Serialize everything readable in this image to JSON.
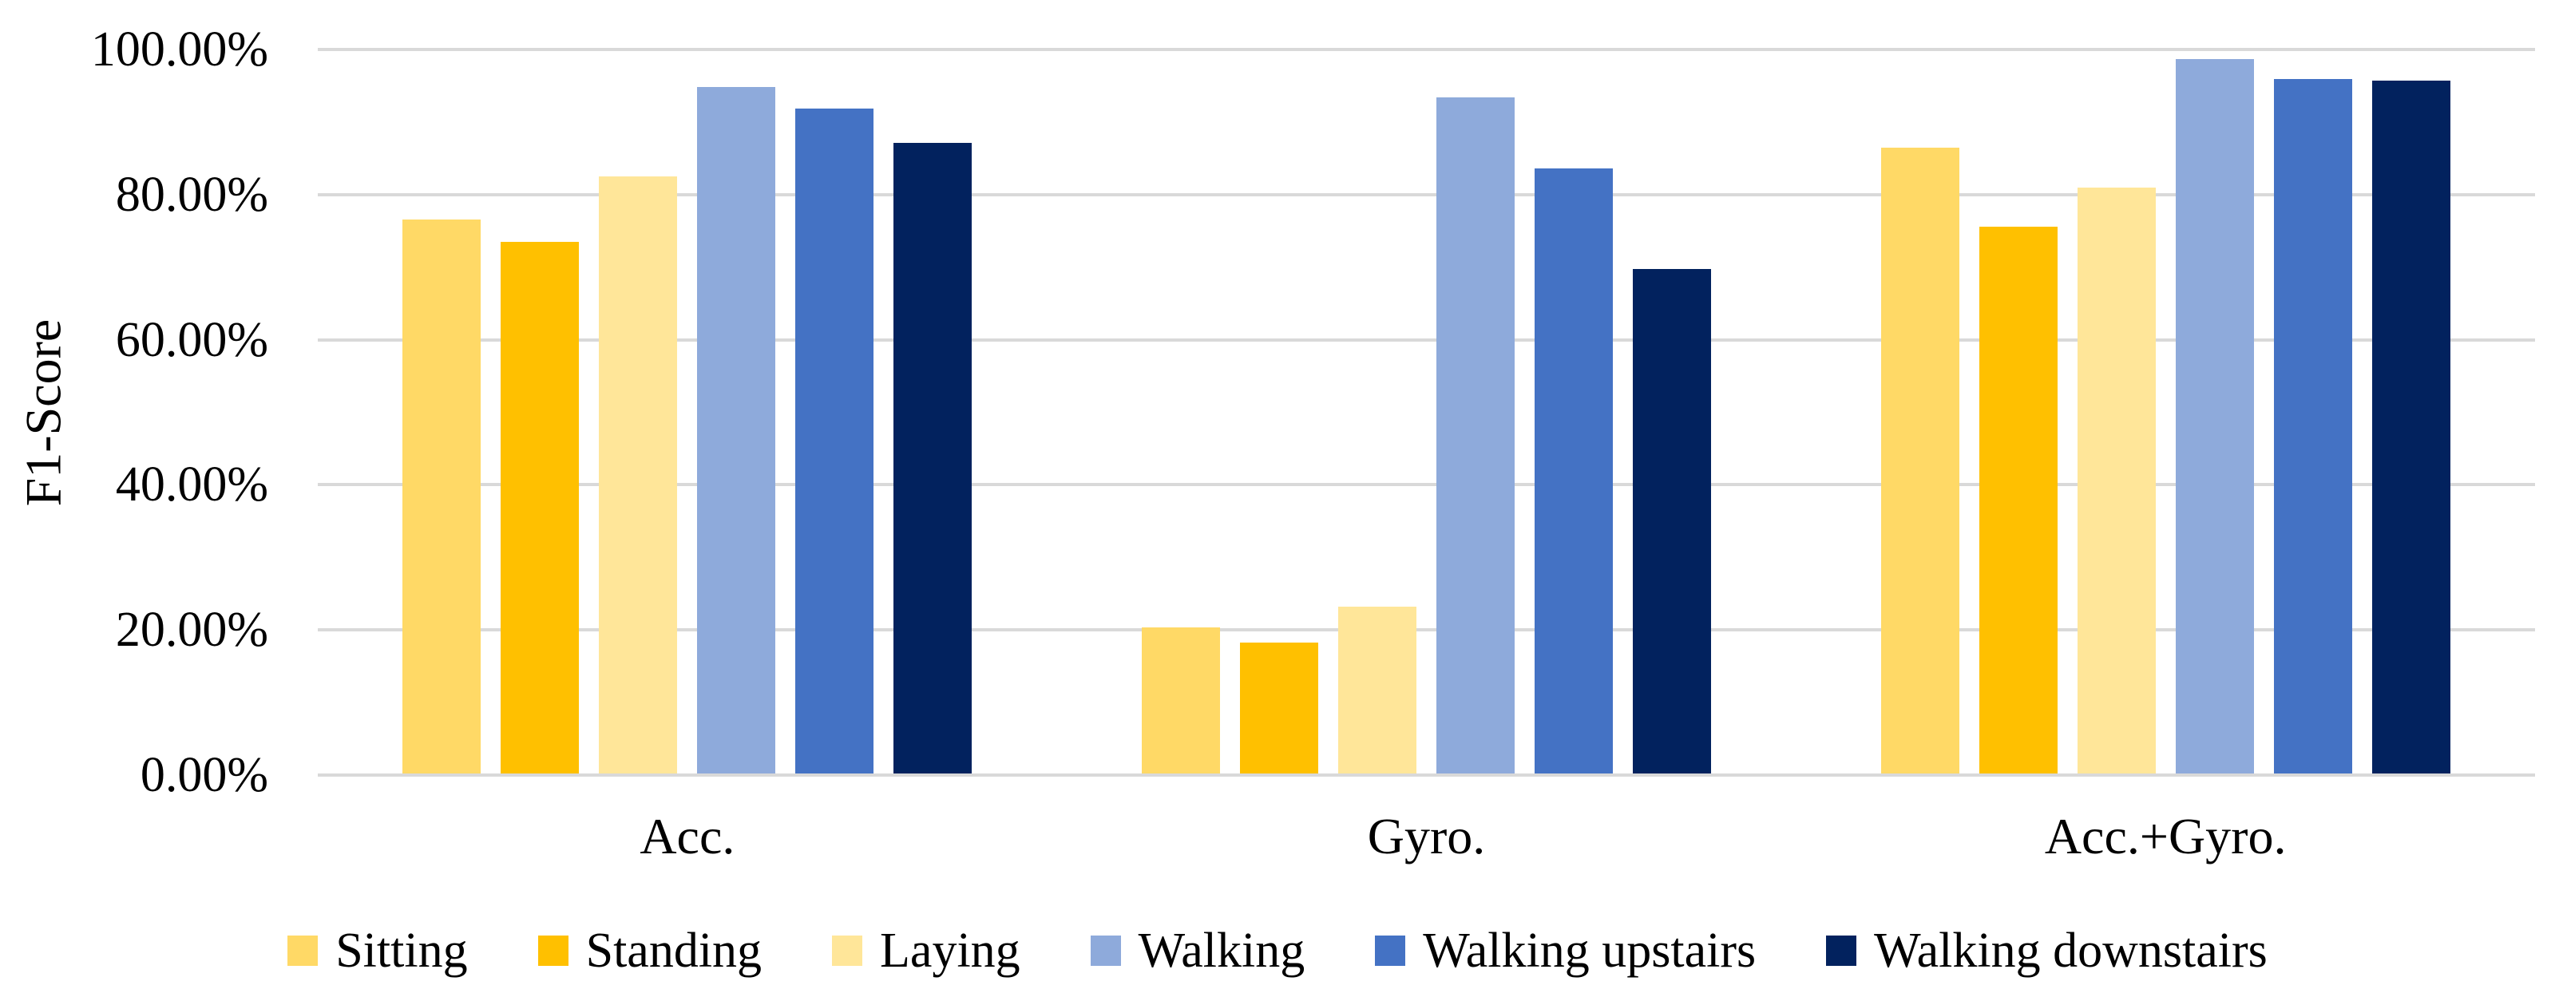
{
  "chart_data": {
    "type": "bar",
    "title": "",
    "xlabel": "",
    "ylabel": "F1-Score",
    "ylim": [
      0,
      100
    ],
    "ytick_step": 20,
    "yticks": [
      "0.00%",
      "20.00%",
      "40.00%",
      "60.00%",
      "80.00%",
      "100.00%"
    ],
    "grid": true,
    "legend_position": "bottom",
    "categories": [
      "Acc.",
      "Gyro.",
      "Acc.+Gyro."
    ],
    "series": [
      {
        "name": "Sitting",
        "color": "#FFD966",
        "values": [
          76.4,
          20.1,
          86.3
        ]
      },
      {
        "name": "Standing",
        "color": "#FFC000",
        "values": [
          73.3,
          18.0,
          75.4
        ]
      },
      {
        "name": "Laying",
        "color": "#FFE699",
        "values": [
          82.3,
          23.0,
          80.8
        ]
      },
      {
        "name": "Walking",
        "color": "#8EAADB",
        "values": [
          94.6,
          93.2,
          98.5
        ]
      },
      {
        "name": "Walking upstairs",
        "color": "#4472C4",
        "values": [
          91.6,
          83.4,
          95.7
        ]
      },
      {
        "name": "Walking downstairs",
        "color": "#02225E",
        "values": [
          86.9,
          69.5,
          95.5
        ]
      }
    ],
    "gridline_color": "#D9D9D9"
  }
}
